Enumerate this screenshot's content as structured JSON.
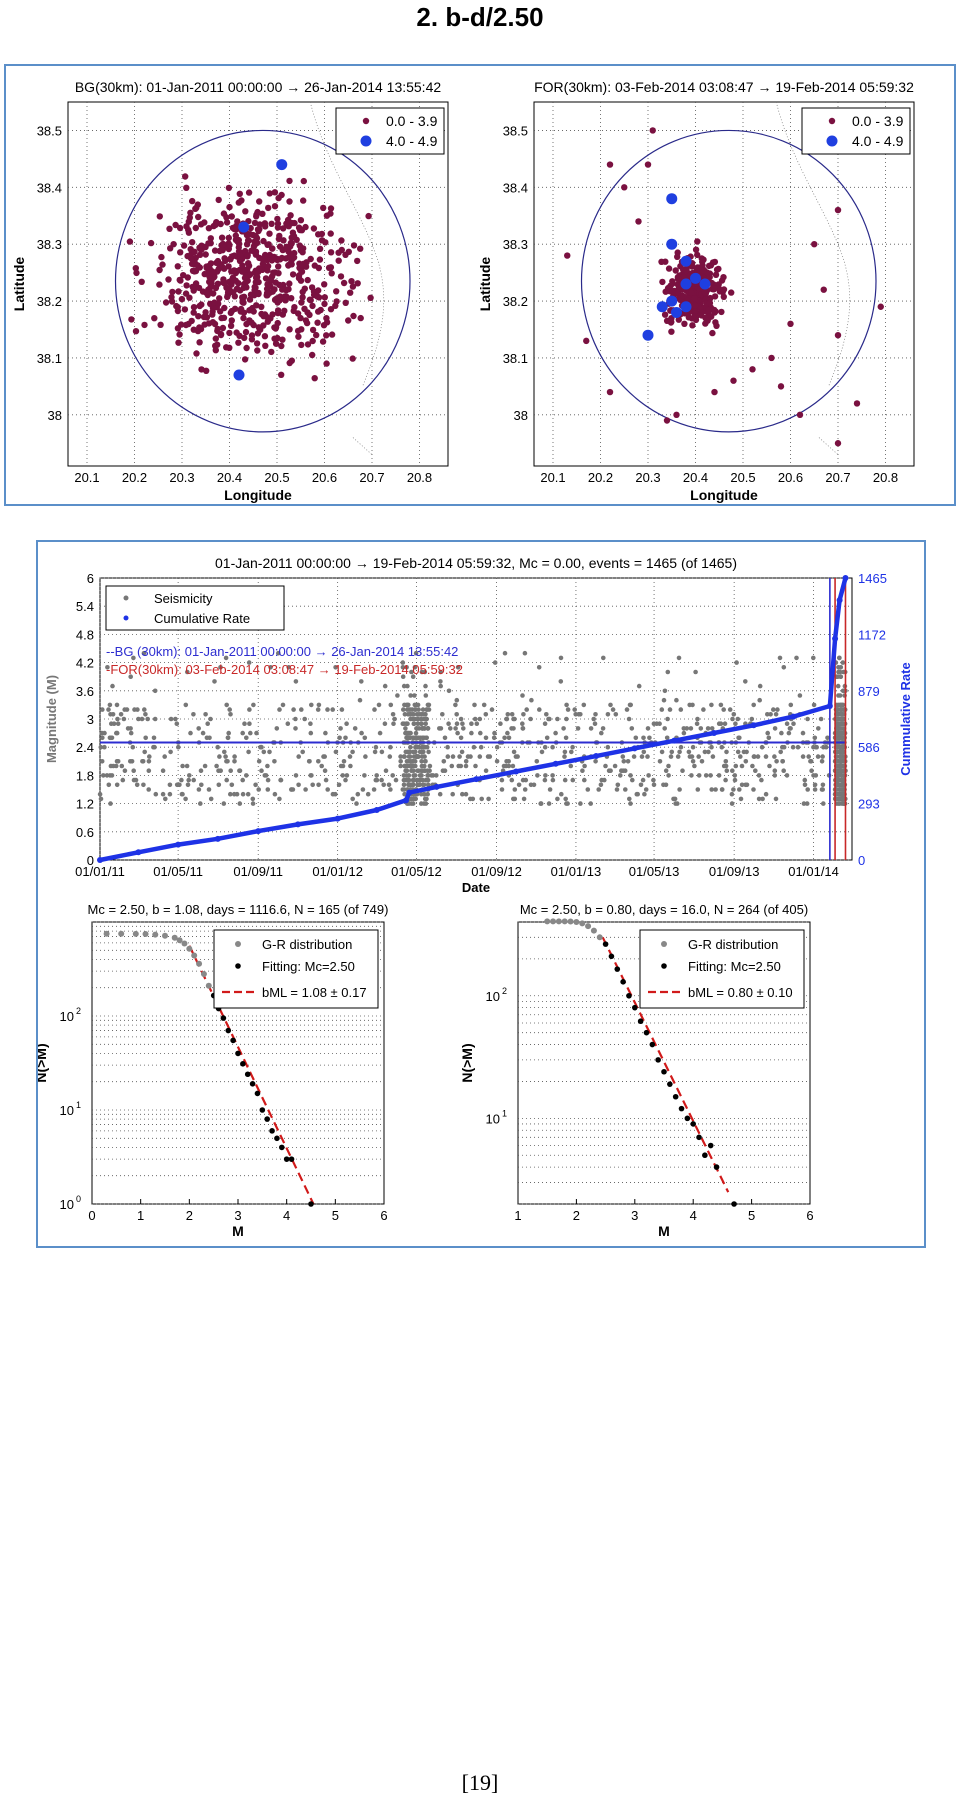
{
  "heading": "2.    b-d/2.50",
  "page_number": "[19]",
  "colors": {
    "small_event": "#7a1140",
    "large_event": "#1f3fe0",
    "circle": "#2a2a8a",
    "seismicity": "#777777",
    "cumulative": "#1e32e6",
    "bg_line": "#2d2dd0",
    "for_line": "#c82828",
    "fit_line": "#d11a1a",
    "frame_border": "#5b8fc9"
  },
  "chart_data": [
    {
      "type": "scatter",
      "id": "map-bg",
      "title": "BG(30km): 01-Jan-2011 00:00:00 → 26-Jan-2014 13:55:42",
      "xlabel": "Longitude",
      "ylabel": "Latitude",
      "xlim": [
        20.06,
        20.86
      ],
      "ylim": [
        37.91,
        38.55
      ],
      "xticks": [
        "20.1",
        "20.2",
        "20.3",
        "20.4",
        "20.5",
        "20.6",
        "20.7",
        "20.8"
      ],
      "yticks": [
        "38",
        "38.1",
        "38.2",
        "38.3",
        "38.4",
        "38.5"
      ],
      "grid": true,
      "legend_position": "top-right",
      "circle": {
        "center_lon": 20.47,
        "center_lat": 38.235,
        "radius_lon": 0.31,
        "radius_lat": 0.265
      },
      "cluster": {
        "center_lon": 20.45,
        "center_lat": 38.24,
        "spread_lon": 0.17,
        "spread_lat": 0.12
      },
      "series": [
        {
          "name": "0.0 - 3.9",
          "count": 620,
          "points": []
        },
        {
          "name": "4.0 - 4.9",
          "points": [
            [
              20.51,
              38.44
            ],
            [
              20.43,
              38.33
            ],
            [
              20.42,
              38.07
            ]
          ]
        }
      ]
    },
    {
      "type": "scatter",
      "id": "map-for",
      "title": "FOR(30km): 03-Feb-2014 03:08:47 → 19-Feb-2014 05:59:32",
      "xlabel": "Longitude",
      "ylabel": "Latitude",
      "xlim": [
        20.06,
        20.86
      ],
      "ylim": [
        37.91,
        38.55
      ],
      "xticks": [
        "20.1",
        "20.2",
        "20.3",
        "20.4",
        "20.5",
        "20.6",
        "20.7",
        "20.8"
      ],
      "yticks": [
        "38",
        "38.1",
        "38.2",
        "38.3",
        "38.4",
        "38.5"
      ],
      "grid": true,
      "legend_position": "top-right",
      "circle": {
        "center_lon": 20.47,
        "center_lat": 38.235,
        "radius_lon": 0.31,
        "radius_lat": 0.265
      },
      "cluster": {
        "center_lon": 20.4,
        "center_lat": 38.22,
        "spread_lon": 0.05,
        "spread_lat": 0.05
      },
      "series": [
        {
          "name": "0.0 - 3.9",
          "count": 300,
          "points": [
            [
              20.13,
              38.28
            ],
            [
              20.17,
              38.13
            ],
            [
              20.22,
              38.04
            ],
            [
              20.25,
              38.4
            ],
            [
              20.3,
              38.44
            ],
            [
              20.31,
              38.5
            ],
            [
              20.52,
              38.08
            ],
            [
              20.58,
              38.05
            ],
            [
              20.62,
              38.0
            ],
            [
              20.7,
              37.95
            ],
            [
              20.74,
              38.02
            ],
            [
              20.79,
              38.19
            ],
            [
              20.7,
              38.36
            ],
            [
              20.65,
              38.3
            ],
            [
              20.6,
              38.16
            ],
            [
              20.56,
              38.1
            ],
            [
              20.48,
              38.06
            ],
            [
              20.44,
              38.04
            ],
            [
              20.36,
              38.0
            ],
            [
              20.34,
              37.99
            ],
            [
              20.7,
              38.14
            ],
            [
              20.67,
              38.22
            ],
            [
              20.28,
              38.34
            ],
            [
              20.22,
              38.44
            ]
          ]
        },
        {
          "name": "4.0 - 4.9",
          "points": [
            [
              20.35,
              38.38
            ],
            [
              20.35,
              38.3
            ],
            [
              20.38,
              38.27
            ],
            [
              20.4,
              38.24
            ],
            [
              20.42,
              38.23
            ],
            [
              20.38,
              38.23
            ],
            [
              20.33,
              38.19
            ],
            [
              20.35,
              38.2
            ],
            [
              20.36,
              38.18
            ],
            [
              20.38,
              38.19
            ],
            [
              20.3,
              38.14
            ]
          ]
        }
      ]
    },
    {
      "type": "scatter",
      "id": "timeline",
      "title": "01-Jan-2011 00:00:00 → 19-Feb-2014 05:59:32, Mc = 0.00, events = 1465 (of 1465)",
      "xlabel": "Date",
      "ylabel": "Magnitude (M)",
      "y2label": "Cummulative Rate",
      "xlim": [
        "2011-01-01",
        "2014-03-01"
      ],
      "ylim": [
        0,
        6
      ],
      "y2lim": [
        0,
        1465
      ],
      "xticks": [
        "01/01/11",
        "01/05/11",
        "01/09/11",
        "01/01/12",
        "01/05/12",
        "01/09/12",
        "01/01/13",
        "01/05/13",
        "01/09/13",
        "01/01/14"
      ],
      "yticks": [
        "0",
        "0.6",
        "1.2",
        "1.8",
        "2.4",
        "3",
        "3.6",
        "4.2",
        "4.8",
        "5.4",
        "6"
      ],
      "y2ticks": [
        "0",
        "293",
        "586",
        "879",
        "1172",
        "1465"
      ],
      "grid": true,
      "legend_position": "top-left",
      "legend": [
        "Seismicity",
        "Cumulative Rate"
      ],
      "annotations": [
        {
          "text": "BG (30km): 01-Jan-2011 00:00:00 → 26-Jan-2014 13:55:42",
          "color": "#2d2dd0"
        },
        {
          "text": "FOR(30km): 03-Feb-2014 03:08:47 → 19-Feb-2014 05:59:32",
          "color": "#c82828"
        }
      ],
      "hline_magnitude": 2.5,
      "bg_end": "2014-01-26",
      "for_start": "2014-02-03",
      "for_end": "2014-02-19",
      "seismicity": {
        "count": 1465,
        "typical_range": [
          1.2,
          3.3
        ],
        "max": 4.4
      },
      "cumulative": {
        "x": [
          "2011-01-01",
          "2011-03-01",
          "2011-05-01",
          "2011-07-01",
          "2011-09-01",
          "2011-11-01",
          "2012-01-01",
          "2012-03-01",
          "2012-04-15",
          "2012-04-20",
          "2012-06-01",
          "2012-08-01",
          "2012-10-01",
          "2012-12-01",
          "2013-02-01",
          "2013-04-01",
          "2013-06-01",
          "2013-08-01",
          "2013-10-01",
          "2013-12-01",
          "2014-01-26",
          "2014-02-03",
          "2014-02-10",
          "2014-02-19"
        ],
        "y": [
          0,
          40,
          80,
          110,
          150,
          185,
          215,
          260,
          310,
          350,
          380,
          420,
          460,
          500,
          540,
          580,
          620,
          660,
          700,
          745,
          800,
          1150,
          1350,
          1465
        ]
      }
    },
    {
      "type": "scatter",
      "id": "gr-bg",
      "title": "Mc = 2.50, b = 1.08, days = 1116.6, N = 165 (of 749)",
      "xlabel": "M",
      "ylabel": "N(>M)",
      "yscale": "log",
      "xlim": [
        0,
        6
      ],
      "ylim": [
        1,
        1000
      ],
      "xticks": [
        "0",
        "1",
        "2",
        "3",
        "4",
        "5",
        "6"
      ],
      "legend_position": "top-right",
      "legend": [
        "G-R distribution",
        "Fitting: Mc=2.50",
        "bML = 1.08 ± 0.17"
      ],
      "gr_points": {
        "M": [
          0.3,
          0.6,
          0.9,
          1.1,
          1.3,
          1.5,
          1.7,
          1.8,
          1.9,
          2.0,
          2.1,
          2.2,
          2.3,
          2.4
        ],
        "N": [
          749,
          749,
          748,
          745,
          735,
          715,
          680,
          640,
          590,
          520,
          440,
          360,
          280,
          210
        ]
      },
      "fit_points": {
        "M": [
          2.5,
          2.6,
          2.7,
          2.8,
          2.9,
          3.0,
          3.1,
          3.2,
          3.3,
          3.4,
          3.5,
          3.6,
          3.7,
          3.8,
          3.9,
          4.0,
          4.1,
          4.5
        ],
        "N": [
          165,
          120,
          95,
          70,
          55,
          40,
          31,
          24,
          19,
          15,
          10,
          8,
          6,
          5,
          4,
          3,
          3,
          1
        ]
      },
      "fit_line": {
        "M": [
          2.0,
          4.55
        ],
        "N": [
          560,
          1.0
        ]
      }
    },
    {
      "type": "scatter",
      "id": "gr-for",
      "title": "Mc = 2.50, b = 0.80, days = 16.0, N = 264 (of 405)",
      "xlabel": "M",
      "ylabel": "N(>M)",
      "yscale": "log",
      "xlim": [
        1,
        6
      ],
      "ylim": [
        2,
        400
      ],
      "xticks": [
        "1",
        "2",
        "3",
        "4",
        "5",
        "6"
      ],
      "legend_position": "top-right",
      "legend": [
        "G-R distribution",
        "Fitting: Mc=2.50",
        "bML = 0.80 ± 0.10"
      ],
      "gr_points": {
        "M": [
          1.5,
          1.6,
          1.7,
          1.8,
          1.9,
          2.0,
          2.1,
          2.2,
          2.3,
          2.4
        ],
        "N": [
          405,
          405,
          405,
          405,
          404,
          400,
          390,
          370,
          340,
          300
        ]
      },
      "fit_points": {
        "M": [
          2.5,
          2.6,
          2.7,
          2.8,
          2.9,
          3.0,
          3.1,
          3.2,
          3.3,
          3.4,
          3.5,
          3.6,
          3.7,
          3.8,
          3.9,
          4.0,
          4.1,
          4.2,
          4.3,
          4.4,
          4.7
        ],
        "N": [
          264,
          210,
          165,
          130,
          100,
          80,
          62,
          50,
          40,
          30,
          24,
          19,
          15,
          12,
          10,
          9,
          7,
          5,
          6,
          4,
          2
        ]
      },
      "fit_line": {
        "M": [
          2.45,
          4.6
        ],
        "N": [
          300,
          2.5
        ]
      }
    }
  ]
}
